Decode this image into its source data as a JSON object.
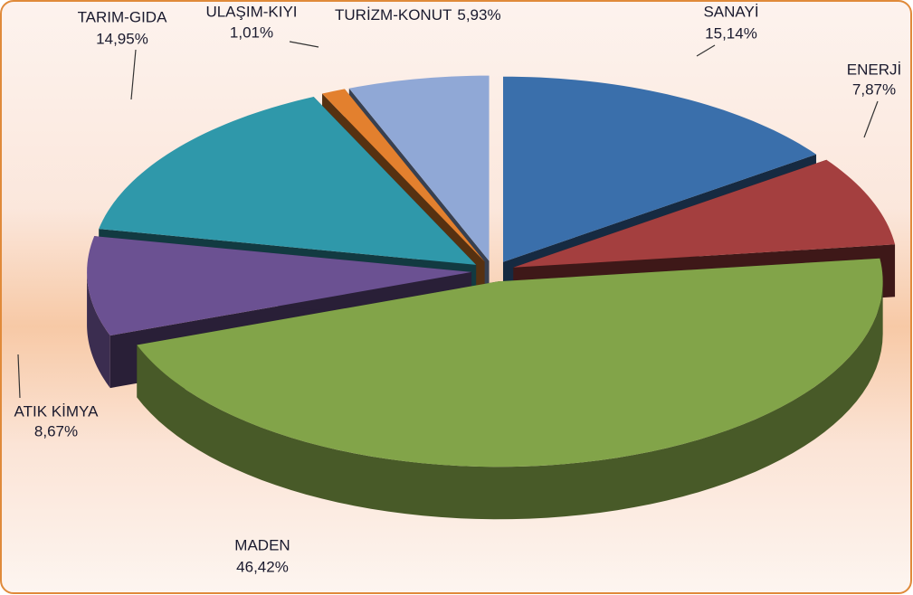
{
  "chart_data": {
    "type": "pie",
    "categories": [
      "SANAYİ",
      "ENERJİ",
      "MADEN",
      "ATIK KİMYA",
      "TARIM-GIDA",
      "ULAŞIM-KIYI",
      "TURİZM-KONUT"
    ],
    "values": [
      15.14,
      7.87,
      46.42,
      8.67,
      14.95,
      1.01,
      5.93
    ],
    "value_labels": [
      "15,14%",
      "7,87%",
      "46,42%",
      "8,67%",
      "14,95%",
      "1,01%",
      "5,93%"
    ],
    "colors": [
      "#3a6fab",
      "#a43f3f",
      "#82a449",
      "#6b5192",
      "#2f98aa",
      "#e3802e",
      "#90a8d6"
    ]
  }
}
